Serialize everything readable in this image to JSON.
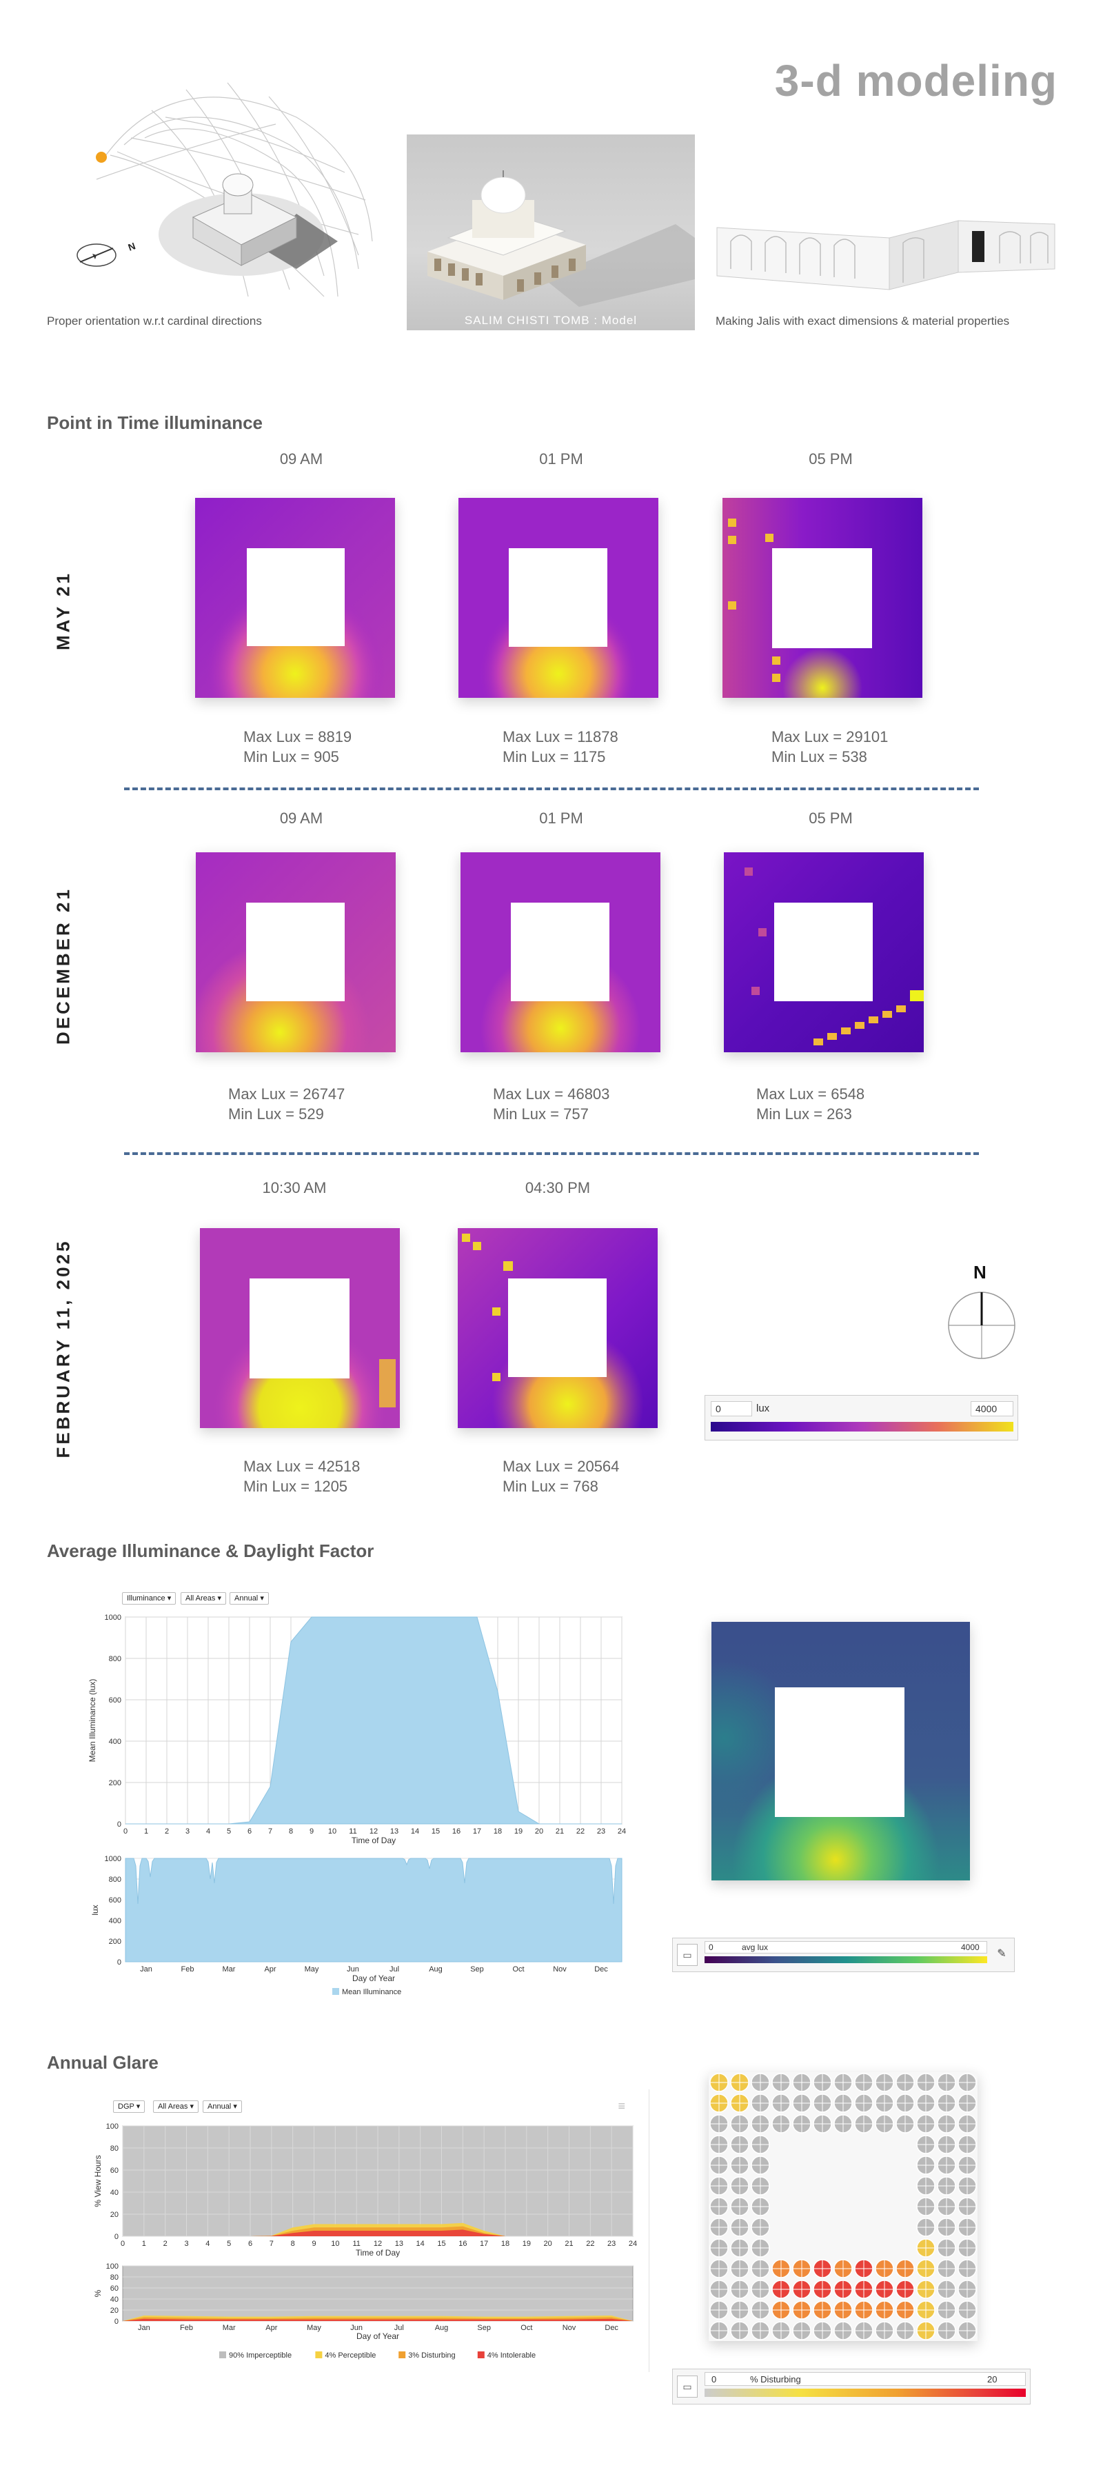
{
  "header": {
    "title": "3-d modeling",
    "captions": {
      "orientation": "Proper orientation w.r.t cardinal directions",
      "model_overlay": "SALIM CHISTI TOMB : Model",
      "jalis": "Making Jalis with exact dimensions & material properties"
    },
    "compass_letter": "N"
  },
  "pit": {
    "title": "Point in Time illuminance",
    "rows": [
      {
        "label": "MAY 21",
        "cells": [
          {
            "time": "09 AM",
            "max": "Max Lux = 8819",
            "min": "Min Lux = 905"
          },
          {
            "time": "01 PM",
            "max": "Max Lux = 11878",
            "min": "Min Lux = 1175"
          },
          {
            "time": "05 PM",
            "max": "Max Lux = 29101",
            "min": "Min Lux = 538"
          }
        ]
      },
      {
        "label": "DECEMBER 21",
        "cells": [
          {
            "time": "09 AM",
            "max": "Max Lux = 26747",
            "min": "Min Lux = 529"
          },
          {
            "time": "01 PM",
            "max": "Max Lux = 46803",
            "min": "Min Lux = 757"
          },
          {
            "time": "05 PM",
            "max": "Max Lux = 6548",
            "min": "Min Lux = 263"
          }
        ]
      },
      {
        "label": "FEBRUARY 11, 2025",
        "cells": [
          {
            "time": "10:30 AM",
            "max": "Max Lux = 42518",
            "min": "Min Lux = 1205"
          },
          {
            "time": "04:30 PM",
            "max": "Max Lux = 20564",
            "min": "Min Lux = 768"
          }
        ]
      }
    ],
    "north_label": "N",
    "legend": {
      "min": "0",
      "unit": "lux",
      "max": "4000"
    }
  },
  "illum": {
    "title": "Average Illuminance & Daylight Factor",
    "controls": [
      "Illuminance",
      "All Areas",
      "Annual"
    ],
    "legend": {
      "min": "0",
      "unit": "avg lux",
      "max": "4000"
    },
    "series_name": "Mean Illuminance"
  },
  "glare": {
    "title": "Annual Glare",
    "controls": [
      "DGP",
      "All Areas",
      "Annual"
    ],
    "legend": {
      "min": "0",
      "unit": "% Disturbing",
      "max": "20"
    },
    "legend_items": [
      "90% Imperceptible",
      "4% Perceptible",
      "3% Disturbing",
      "4% Intolerable"
    ]
  },
  "chart_data": [
    {
      "type": "area",
      "title": "",
      "xlabel": "Time of Day",
      "ylabel": "Mean Illuminance (lux)",
      "x": [
        0,
        1,
        2,
        3,
        4,
        5,
        6,
        7,
        8,
        9,
        10,
        11,
        12,
        13,
        14,
        15,
        16,
        17,
        18,
        19,
        20,
        21,
        22,
        23,
        24
      ],
      "values": [
        0,
        0,
        0,
        0,
        0,
        0,
        10,
        180,
        880,
        1000,
        1000,
        1000,
        1000,
        1000,
        1000,
        1000,
        1000,
        1000,
        640,
        60,
        0,
        0,
        0,
        0,
        0
      ],
      "xlim": [
        0,
        24
      ],
      "ylim": [
        0,
        1000
      ],
      "yticks": [
        0,
        200,
        400,
        600,
        800,
        1000
      ],
      "grid": true,
      "color": "#aad6ee"
    },
    {
      "type": "area",
      "title": "",
      "xlabel": "Day of Year",
      "ylabel": "lux",
      "categories": [
        "Jan",
        "Feb",
        "Mar",
        "Apr",
        "May",
        "Jun",
        "Jul",
        "Aug",
        "Sep",
        "Oct",
        "Nov",
        "Dec"
      ],
      "ylim": [
        0,
        1000
      ],
      "yticks": [
        0,
        200,
        400,
        600,
        800,
        1000
      ],
      "typical_value": 1000,
      "dips": [
        {
          "month_pos": 0.3,
          "value": 560
        },
        {
          "month_pos": 0.6,
          "value": 820
        },
        {
          "month_pos": 2.05,
          "value": 800
        },
        {
          "month_pos": 2.15,
          "value": 760
        },
        {
          "month_pos": 6.8,
          "value": 940
        },
        {
          "month_pos": 7.35,
          "value": 900
        },
        {
          "month_pos": 8.2,
          "value": 760
        },
        {
          "month_pos": 11.8,
          "value": 560
        }
      ],
      "legend": [
        "Mean Illuminance"
      ],
      "legend_position": "bottom",
      "color": "#aad6ee"
    },
    {
      "type": "area",
      "title": "",
      "xlabel": "Time of Day",
      "ylabel": "% View Hours",
      "x": [
        0,
        1,
        2,
        3,
        4,
        5,
        6,
        7,
        8,
        9,
        10,
        11,
        12,
        13,
        14,
        15,
        16,
        17,
        18,
        19,
        20,
        21,
        22,
        23,
        24
      ],
      "ylim": [
        0,
        100
      ],
      "yticks": [
        0,
        20,
        40,
        60,
        80,
        100
      ],
      "series": [
        {
          "name": "90% Imperceptible",
          "color": "#bdbdbd",
          "values": [
            100,
            100,
            100,
            100,
            100,
            100,
            100,
            100,
            100,
            100,
            100,
            100,
            100,
            100,
            100,
            100,
            100,
            100,
            100,
            100,
            100,
            100,
            100,
            100,
            100
          ]
        },
        {
          "name": "4% Perceptible",
          "color": "#f5d142",
          "values": [
            0,
            0,
            0,
            0,
            0,
            0,
            0,
            0.5,
            8,
            11,
            11,
            11,
            11,
            11,
            11,
            11,
            12,
            5,
            0,
            0,
            0,
            0,
            0,
            0,
            0
          ]
        },
        {
          "name": "3% Disturbing",
          "color": "#f0a030",
          "values": [
            0,
            0,
            0,
            0,
            0,
            0,
            0,
            0.3,
            5,
            8,
            8,
            8,
            8,
            8,
            8,
            8,
            9,
            3,
            0,
            0,
            0,
            0,
            0,
            0,
            0
          ]
        },
        {
          "name": "4% Intolerable",
          "color": "#e8413a",
          "values": [
            0,
            0,
            0,
            0,
            0,
            0,
            0,
            0.2,
            3,
            5,
            5,
            5,
            5,
            5,
            5,
            5,
            6,
            2,
            0,
            0,
            0,
            0,
            0,
            0,
            0
          ]
        }
      ],
      "grid": true
    },
    {
      "type": "area",
      "title": "",
      "xlabel": "Day of Year",
      "ylabel": "%",
      "categories": [
        "Jan",
        "Feb",
        "Mar",
        "Apr",
        "May",
        "Jun",
        "Jul",
        "Aug",
        "Sep",
        "Oct",
        "Nov",
        "Dec"
      ],
      "ylim": [
        0,
        100
      ],
      "yticks": [
        0,
        20,
        40,
        60,
        80,
        100
      ],
      "series": [
        {
          "name": "90% Imperceptible",
          "color": "#bdbdbd",
          "values": [
            100,
            100,
            100,
            100,
            100,
            100,
            100,
            100,
            100,
            100,
            100,
            100
          ]
        },
        {
          "name": "4% Perceptible",
          "color": "#f5d142",
          "values": [
            10,
            9,
            8,
            8,
            9,
            9,
            9,
            9,
            8,
            8,
            9,
            10
          ]
        },
        {
          "name": "3% Disturbing",
          "color": "#f0a030",
          "values": [
            7,
            6,
            5,
            5,
            6,
            6,
            6,
            6,
            5,
            5,
            6,
            7
          ]
        },
        {
          "name": "4% Intolerable",
          "color": "#e8413a",
          "values": [
            4,
            3,
            3,
            3,
            3,
            3,
            3,
            3,
            3,
            3,
            3,
            4
          ]
        }
      ],
      "legend": [
        "90% Imperceptible",
        "4% Perceptible",
        "3% Disturbing",
        "4% Intolerable"
      ],
      "legend_position": "bottom"
    }
  ]
}
